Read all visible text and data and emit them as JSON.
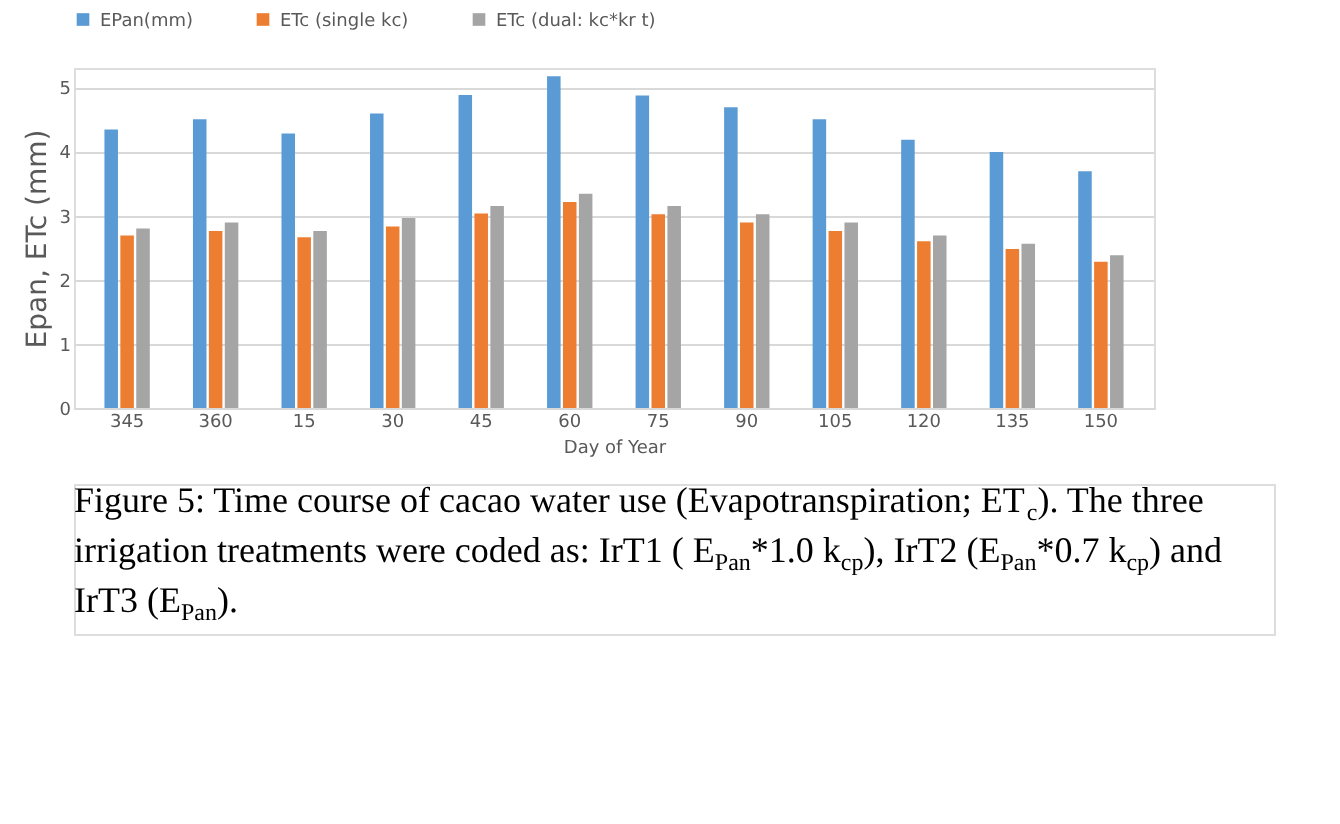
{
  "chart_data": {
    "type": "bar",
    "xlabel": "Day of Year",
    "ylabel": "Epan, ETc (mm)",
    "categories": [
      "345",
      "360",
      "15",
      "30",
      "45",
      "60",
      "75",
      "90",
      "105",
      "120",
      "135",
      "150"
    ],
    "series": [
      {
        "name": "EPan(mm)",
        "color": "#5b9bd5",
        "values": [
          4.34,
          4.5,
          4.28,
          4.59,
          4.88,
          5.17,
          4.87,
          4.69,
          4.5,
          4.18,
          3.99,
          3.69
        ]
      },
      {
        "name": "ETc (single kc)",
        "color": "#ed7d31",
        "values": [
          2.69,
          2.76,
          2.66,
          2.83,
          3.03,
          3.21,
          3.02,
          2.89,
          2.76,
          2.6,
          2.48,
          2.28
        ]
      },
      {
        "name": "ETc (dual: kc*kr t)",
        "color": "#a5a5a5",
        "values": [
          2.8,
          2.89,
          2.76,
          2.96,
          3.15,
          3.34,
          3.15,
          3.02,
          2.89,
          2.69,
          2.56,
          2.38
        ]
      }
    ],
    "ylim": [
      0,
      5.3
    ],
    "yticks": [
      0,
      1,
      2,
      3,
      4,
      5
    ],
    "grid": "y",
    "legend": "top",
    "annotations": [
      "Figure 5: Time course of cacao water use (Evapotranspiration; ET$_{c}$). The three irrigation treatments were coded as: IrT1 ( E$_{Pan}$*1.0 k$_{cp}$), IrT2 (E$_{Pan}$*0.7 k$_{cp}$) and IrT3 (E$_{Pan}$)."
    ]
  }
}
